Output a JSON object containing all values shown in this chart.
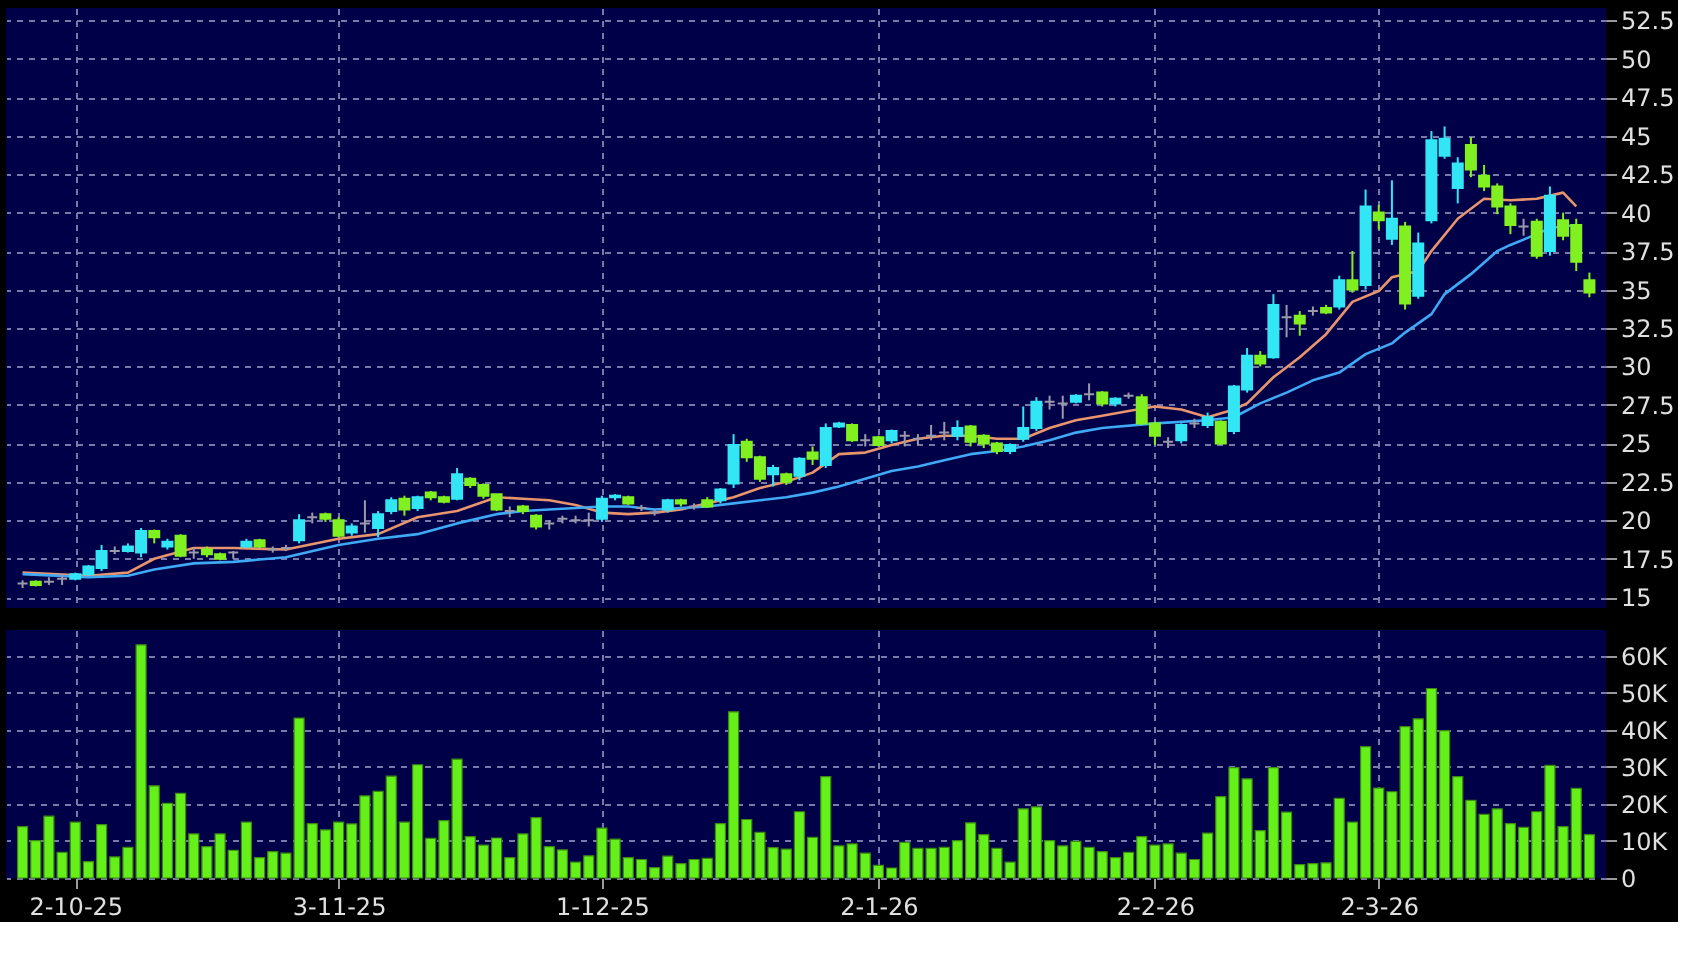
{
  "chart_data": [
    {
      "type": "candlestick",
      "categories": [
        null,
        null,
        null,
        null,
        null,
        null,
        null,
        null,
        null,
        null,
        null,
        null,
        null,
        null,
        null,
        null,
        null,
        null,
        null,
        null,
        null,
        null,
        null,
        null,
        null,
        null,
        null,
        null,
        null,
        null,
        null,
        null,
        null,
        null,
        null,
        null,
        null,
        null,
        null,
        null,
        null,
        null,
        null,
        null,
        null,
        null,
        null,
        null,
        null,
        null,
        null,
        null,
        null,
        null,
        null,
        null,
        null,
        null,
        null,
        null,
        null,
        null,
        null,
        null,
        null,
        null,
        null,
        null,
        null,
        null,
        null,
        null,
        null,
        null,
        null,
        null,
        null,
        null,
        null,
        null,
        null,
        null,
        null,
        null,
        null,
        null,
        null,
        null,
        null,
        null,
        null,
        null,
        null,
        null,
        null,
        null,
        null,
        null,
        null,
        null,
        null,
        null,
        null,
        null,
        null,
        null,
        null,
        null,
        null,
        null,
        null,
        null,
        null,
        null,
        null,
        null,
        null,
        null,
        null,
        null
      ],
      "ohlc": [
        [
          15.9,
          16.1,
          15.6,
          15.9
        ],
        [
          16.0,
          16.1,
          15.7,
          15.8
        ],
        [
          16.0,
          16.3,
          15.8,
          16.0
        ],
        [
          16.2,
          16.5,
          15.8,
          16.2
        ],
        [
          16.2,
          16.6,
          16.1,
          16.5
        ],
        [
          16.5,
          17.1,
          16.4,
          17.0
        ],
        [
          16.9,
          18.4,
          16.7,
          18.0
        ],
        [
          18.0,
          18.3,
          17.8,
          18.0
        ],
        [
          18.0,
          18.5,
          17.9,
          18.3
        ],
        [
          17.9,
          19.5,
          17.6,
          19.3
        ],
        [
          19.3,
          19.4,
          18.5,
          18.9
        ],
        [
          18.3,
          18.8,
          18.1,
          18.6
        ],
        [
          19.0,
          19.1,
          17.6,
          17.7
        ],
        [
          17.9,
          18.2,
          17.5,
          17.9
        ],
        [
          18.1,
          18.3,
          17.6,
          17.8
        ],
        [
          17.8,
          17.9,
          17.4,
          17.5
        ],
        [
          17.9,
          18.0,
          17.5,
          17.9
        ],
        [
          18.3,
          18.8,
          18.2,
          18.6
        ],
        [
          18.7,
          18.8,
          18.2,
          18.3
        ],
        [
          18.1,
          18.3,
          17.9,
          18.1
        ],
        [
          18.2,
          18.4,
          18.0,
          18.2
        ],
        [
          18.7,
          20.4,
          18.5,
          20.0
        ],
        [
          20.2,
          20.5,
          19.8,
          20.2
        ],
        [
          20.4,
          20.5,
          19.9,
          20.1
        ],
        [
          20.0,
          20.2,
          18.9,
          19.0
        ],
        [
          19.2,
          19.8,
          19.0,
          19.6
        ],
        [
          19.8,
          21.3,
          19.2,
          19.8
        ],
        [
          19.5,
          20.6,
          18.9,
          20.4
        ],
        [
          20.6,
          21.5,
          20.4,
          21.3
        ],
        [
          21.4,
          21.6,
          20.3,
          20.7
        ],
        [
          20.8,
          21.6,
          20.6,
          21.5
        ],
        [
          21.8,
          21.9,
          21.3,
          21.5
        ],
        [
          21.5,
          21.6,
          21.1,
          21.2
        ],
        [
          21.4,
          23.4,
          21.3,
          23.0
        ],
        [
          22.7,
          22.8,
          22.1,
          22.3
        ],
        [
          22.3,
          22.4,
          21.4,
          21.6
        ],
        [
          21.7,
          21.7,
          20.6,
          20.7
        ],
        [
          20.6,
          20.9,
          20.2,
          20.6
        ],
        [
          20.9,
          21.0,
          20.4,
          20.6
        ],
        [
          20.3,
          20.4,
          19.4,
          19.6
        ],
        [
          19.8,
          20.0,
          19.4,
          19.8
        ],
        [
          20.1,
          20.3,
          19.8,
          20.1
        ],
        [
          20.0,
          20.3,
          19.8,
          20.0
        ],
        [
          20.0,
          20.5,
          19.6,
          20.0
        ],
        [
          20.1,
          21.6,
          19.9,
          21.4
        ],
        [
          21.5,
          21.7,
          21.3,
          21.6
        ],
        [
          21.5,
          21.6,
          21.0,
          21.1
        ],
        [
          20.8,
          21.0,
          20.6,
          20.8
        ],
        [
          20.5,
          20.7,
          20.3,
          20.5
        ],
        [
          20.7,
          21.4,
          20.5,
          21.3
        ],
        [
          21.3,
          21.4,
          20.9,
          21.1
        ],
        [
          20.9,
          21.1,
          20.7,
          20.9
        ],
        [
          21.3,
          21.5,
          20.8,
          20.9
        ],
        [
          21.3,
          22.1,
          21.1,
          22.0
        ],
        [
          22.4,
          25.6,
          22.1,
          24.9
        ],
        [
          25.1,
          25.3,
          23.8,
          24.1
        ],
        [
          24.1,
          24.2,
          22.5,
          22.7
        ],
        [
          23.0,
          23.6,
          22.2,
          23.4
        ],
        [
          23.0,
          23.1,
          22.3,
          22.5
        ],
        [
          22.9,
          24.1,
          22.6,
          24.0
        ],
        [
          24.4,
          24.8,
          23.6,
          24.0
        ],
        [
          23.6,
          26.3,
          23.4,
          26.0
        ],
        [
          26.1,
          26.4,
          26.0,
          26.3
        ],
        [
          26.2,
          26.3,
          25.1,
          25.2
        ],
        [
          25.2,
          25.6,
          24.8,
          25.2
        ],
        [
          25.4,
          25.5,
          24.8,
          24.9
        ],
        [
          25.2,
          25.9,
          25.0,
          25.8
        ],
        [
          25.5,
          25.8,
          24.8,
          25.5
        ],
        [
          25.3,
          25.6,
          24.9,
          25.3
        ],
        [
          25.5,
          26.2,
          25.2,
          25.5
        ],
        [
          25.7,
          26.4,
          25.2,
          25.7
        ],
        [
          25.5,
          26.5,
          25.2,
          26.0
        ],
        [
          26.1,
          26.2,
          24.8,
          25.1
        ],
        [
          25.5,
          25.6,
          24.7,
          25.0
        ],
        [
          25.0,
          25.1,
          24.3,
          24.5
        ],
        [
          24.5,
          25.0,
          24.3,
          24.9
        ],
        [
          25.3,
          27.4,
          25.1,
          26.0
        ],
        [
          26.0,
          28.0,
          25.8,
          27.7
        ],
        [
          27.7,
          28.1,
          27.2,
          27.7
        ],
        [
          27.6,
          28.1,
          26.6,
          27.6
        ],
        [
          27.7,
          28.2,
          27.6,
          28.1
        ],
        [
          28.2,
          28.9,
          27.8,
          28.2
        ],
        [
          28.3,
          28.4,
          27.4,
          27.6
        ],
        [
          27.6,
          28.0,
          27.4,
          27.9
        ],
        [
          28.1,
          28.3,
          27.9,
          28.1
        ],
        [
          28.0,
          28.2,
          26.2,
          26.3
        ],
        [
          26.3,
          26.4,
          24.9,
          25.5
        ],
        [
          25.1,
          25.4,
          24.7,
          25.1
        ],
        [
          25.2,
          26.3,
          25.0,
          26.2
        ],
        [
          26.3,
          26.6,
          26.0,
          26.3
        ],
        [
          26.2,
          27.0,
          26.0,
          26.7
        ],
        [
          26.4,
          26.5,
          24.9,
          25.0
        ],
        [
          25.8,
          28.8,
          25.6,
          28.7
        ],
        [
          28.5,
          31.2,
          28.3,
          30.7
        ],
        [
          30.7,
          31.0,
          30.0,
          30.2
        ],
        [
          30.6,
          34.7,
          30.5,
          34.0
        ],
        [
          33.2,
          34.0,
          31.9,
          33.2
        ],
        [
          33.3,
          33.6,
          32.0,
          32.8
        ],
        [
          33.6,
          33.9,
          33.3,
          33.6
        ],
        [
          33.8,
          34.0,
          33.4,
          33.5
        ],
        [
          33.9,
          35.9,
          33.7,
          35.6
        ],
        [
          35.6,
          37.5,
          34.8,
          35.0
        ],
        [
          35.3,
          41.5,
          35.0,
          40.4
        ],
        [
          40.0,
          40.5,
          38.9,
          39.5
        ],
        [
          38.3,
          42.1,
          37.9,
          39.6
        ],
        [
          39.1,
          39.4,
          33.7,
          34.1
        ],
        [
          34.6,
          38.7,
          34.4,
          38.0
        ],
        [
          39.5,
          45.3,
          39.3,
          44.7
        ],
        [
          43.7,
          45.6,
          43.5,
          44.8
        ],
        [
          41.6,
          43.6,
          40.6,
          43.2
        ],
        [
          44.4,
          44.9,
          42.3,
          42.8
        ],
        [
          42.4,
          43.1,
          41.4,
          41.7
        ],
        [
          41.7,
          41.9,
          39.9,
          40.4
        ],
        [
          40.4,
          40.6,
          38.6,
          39.2
        ],
        [
          39.1,
          39.6,
          38.5,
          39.1
        ],
        [
          39.4,
          39.6,
          37.0,
          37.2
        ],
        [
          37.5,
          41.7,
          37.2,
          41.1
        ],
        [
          39.5,
          40.0,
          38.2,
          38.5
        ],
        [
          39.2,
          39.6,
          36.2,
          36.8
        ],
        [
          35.6,
          36.1,
          34.5,
          34.8
        ]
      ],
      "colors": [
        "#9a9aaa",
        "#80f020",
        "#9a9aaa",
        "#9a9aaa",
        "#33e6f5",
        "#33e6f5",
        "#33e6f5",
        "#9a9aaa",
        "#33e6f5",
        "#33e6f5",
        "#80f020",
        "#33e6f5",
        "#80f020",
        "#9a9aaa",
        "#80f020",
        "#80f020",
        "#9a9aaa",
        "#33e6f5",
        "#80f020",
        "#9a9aaa",
        "#9a9aaa",
        "#33e6f5",
        "#9a9aaa",
        "#80f020",
        "#80f020",
        "#33e6f5",
        "#9a9aaa",
        "#33e6f5",
        "#33e6f5",
        "#80f020",
        "#33e6f5",
        "#80f020",
        "#80f020",
        "#33e6f5",
        "#80f020",
        "#80f020",
        "#80f020",
        "#9a9aaa",
        "#80f020",
        "#80f020",
        "#9a9aaa",
        "#9a9aaa",
        "#9a9aaa",
        "#9a9aaa",
        "#33e6f5",
        "#33e6f5",
        "#80f020",
        "#9a9aaa",
        "#9a9aaa",
        "#33e6f5",
        "#80f020",
        "#9a9aaa",
        "#80f020",
        "#33e6f5",
        "#33e6f5",
        "#80f020",
        "#80f020",
        "#33e6f5",
        "#80f020",
        "#33e6f5",
        "#80f020",
        "#33e6f5",
        "#33e6f5",
        "#80f020",
        "#9a9aaa",
        "#80f020",
        "#33e6f5",
        "#9a9aaa",
        "#9a9aaa",
        "#9a9aaa",
        "#9a9aaa",
        "#33e6f5",
        "#80f020",
        "#80f020",
        "#80f020",
        "#33e6f5",
        "#33e6f5",
        "#33e6f5",
        "#9a9aaa",
        "#9a9aaa",
        "#33e6f5",
        "#9a9aaa",
        "#80f020",
        "#33e6f5",
        "#9a9aaa",
        "#80f020",
        "#80f020",
        "#9a9aaa",
        "#33e6f5",
        "#9a9aaa",
        "#33e6f5",
        "#80f020",
        "#33e6f5",
        "#33e6f5",
        "#80f020",
        "#33e6f5",
        "#9a9aaa",
        "#80f020",
        "#9a9aaa",
        "#80f020",
        "#33e6f5",
        "#80f020",
        "#33e6f5",
        "#80f020",
        "#33e6f5",
        "#80f020",
        "#33e6f5",
        "#33e6f5",
        "#33e6f5",
        "#33e6f5",
        "#80f020",
        "#80f020",
        "#80f020",
        "#80f020",
        "#9a9aaa",
        "#80f020",
        "#33e6f5",
        "#80f020",
        "#80f020",
        "#80f020"
      ],
      "series": [
        {
          "type": "line",
          "color": "#e8946c",
          "values": [
            16.6,
            null,
            null,
            null,
            null,
            16.4,
            null,
            null,
            16.6,
            null,
            17.5,
            null,
            null,
            18.2,
            null,
            null,
            18.2,
            null,
            null,
            null,
            18.1,
            null,
            null,
            null,
            18.8,
            null,
            null,
            19.1,
            null,
            null,
            20.2,
            null,
            null,
            20.6,
            null,
            null,
            21.5,
            null,
            21.4,
            null,
            21.3,
            null,
            21.0,
            null,
            20.5,
            null,
            20.4,
            null,
            20.5,
            null,
            20.7,
            null,
            21.1,
            null,
            21.5,
            null,
            22.1,
            null,
            22.5,
            null,
            23.1,
            null,
            24.3,
            null,
            24.4,
            null,
            24.9,
            null,
            25.3,
            null,
            25.5,
            null,
            25.5,
            null,
            25.3,
            null,
            25.3,
            null,
            26.0,
            null,
            26.5,
            null,
            26.8,
            null,
            27.1,
            null,
            27.4,
            null,
            27.2,
            null,
            26.7,
            null,
            27.2,
            27.6,
            null,
            29.3,
            null,
            30.6,
            null,
            32.1,
            null,
            34.2,
            null,
            34.9,
            35.8,
            null,
            36.2,
            37.5,
            null,
            39.6,
            null,
            40.9,
            null,
            40.8,
            null,
            40.9,
            null,
            41.3,
            40.4,
            null
          ]
        },
        {
          "type": "line",
          "color": "#3fa9f5",
          "values": [
            16.5,
            null,
            null,
            null,
            null,
            16.3,
            null,
            null,
            16.4,
            null,
            16.8,
            null,
            null,
            17.2,
            null,
            null,
            17.3,
            null,
            null,
            null,
            17.6,
            null,
            null,
            null,
            18.4,
            null,
            null,
            18.8,
            null,
            null,
            19.1,
            null,
            null,
            19.8,
            null,
            null,
            20.4,
            null,
            20.6,
            null,
            20.7,
            null,
            20.8,
            null,
            20.9,
            null,
            20.9,
            null,
            20.7,
            null,
            20.8,
            null,
            20.9,
            null,
            21.1,
            null,
            21.3,
            null,
            21.5,
            null,
            21.8,
            null,
            22.2,
            null,
            22.7,
            null,
            23.2,
            null,
            23.5,
            null,
            23.9,
            null,
            24.3,
            null,
            24.5,
            null,
            24.8,
            null,
            25.2,
            null,
            25.7,
            null,
            26.0,
            null,
            null,
            null,
            26.3,
            null,
            null,
            null,
            26.5,
            null,
            26.7,
            null,
            27.6,
            null,
            28.3,
            null,
            29.1,
            null,
            29.6,
            null,
            30.8,
            null,
            31.5,
            32.2,
            null,
            33.4,
            34.7,
            null,
            36.0,
            null,
            37.5,
            37.9,
            null,
            38.6,
            39.0,
            39.1,
            39.2,
            null
          ]
        }
      ],
      "ylim": [
        14.3,
        53.3
      ],
      "yticks": [
        15,
        17.5,
        20,
        22.5,
        25,
        27.5,
        30,
        32.5,
        35,
        37.5,
        40,
        42.5,
        45,
        47.5,
        50,
        52.5
      ],
      "grid": true,
      "tick_labels": "y"
    },
    {
      "type": "bar",
      "categories": [
        null,
        null,
        null,
        null,
        "2-10-25",
        null,
        null,
        null,
        null,
        null,
        null,
        null,
        null,
        null,
        null,
        null,
        null,
        null,
        null,
        null,
        null,
        null,
        null,
        null,
        "3-11-25",
        null,
        null,
        null,
        null,
        null,
        null,
        null,
        null,
        null,
        null,
        null,
        null,
        null,
        null,
        null,
        null,
        null,
        null,
        null,
        "1-12-25",
        null,
        null,
        null,
        null,
        null,
        null,
        null,
        null,
        null,
        null,
        null,
        null,
        null,
        null,
        null,
        null,
        null,
        null,
        null,
        null,
        "2-1-26",
        null,
        null,
        null,
        null,
        null,
        null,
        null,
        null,
        null,
        null,
        null,
        null,
        null,
        null,
        null,
        null,
        null,
        null,
        null,
        null,
        "2-2-26",
        null,
        null,
        null,
        null,
        null,
        null,
        null,
        null,
        null,
        null,
        null,
        null,
        null,
        null,
        null,
        null,
        "2-3-26",
        null,
        null,
        null,
        null,
        null,
        null,
        null,
        null,
        null,
        null,
        null,
        null,
        null,
        null,
        null,
        null
      ],
      "values": [
        13900,
        10100,
        16700,
        6900,
        15100,
        4400,
        14400,
        5700,
        8300,
        63000,
        24900,
        20200,
        22900,
        11900,
        8500,
        11900,
        7500,
        15100,
        5500,
        7100,
        6700,
        43200,
        14700,
        13000,
        15100,
        14600,
        22200,
        23400,
        27500,
        15100,
        30600,
        10700,
        15500,
        32100,
        11200,
        8900,
        10800,
        5500,
        11900,
        16300,
        8500,
        7600,
        4300,
        6000,
        13500,
        10500,
        5500,
        5000,
        2800,
        5900,
        3900,
        5000,
        5300,
        14700,
        44900,
        15800,
        12300,
        8200,
        7800,
        17900,
        11000,
        27400,
        8700,
        9200,
        6700,
        3400,
        2700,
        9600,
        8000,
        8000,
        8300,
        10100,
        14900,
        11700,
        8000,
        4300,
        18700,
        19200,
        10100,
        8700,
        9900,
        8300,
        7100,
        5500,
        6900,
        11200,
        8900,
        9200,
        6700,
        5000,
        12100,
        22000,
        29800,
        26800,
        12800,
        29800,
        17800,
        3600,
        3900,
        4100,
        21500,
        15100,
        35500,
        24300,
        23300,
        40900,
        43000,
        51200,
        39800,
        27400,
        21000,
        17200,
        18700,
        14700,
        13700,
        17900,
        30400,
        13900,
        24200,
        11700
      ],
      "color": "#66f01a",
      "ylim": [
        0,
        67000
      ],
      "yticks": [
        0,
        {
          "value": 10000,
          "label": "10K"
        },
        {
          "value": 20000,
          "label": "20K"
        },
        {
          "value": 30000,
          "label": "30K"
        },
        {
          "value": 40000,
          "label": "40K"
        },
        {
          "value": 50000,
          "label": "50K"
        },
        {
          "value": 60000,
          "label": "60K"
        }
      ],
      "grid": true
    }
  ]
}
